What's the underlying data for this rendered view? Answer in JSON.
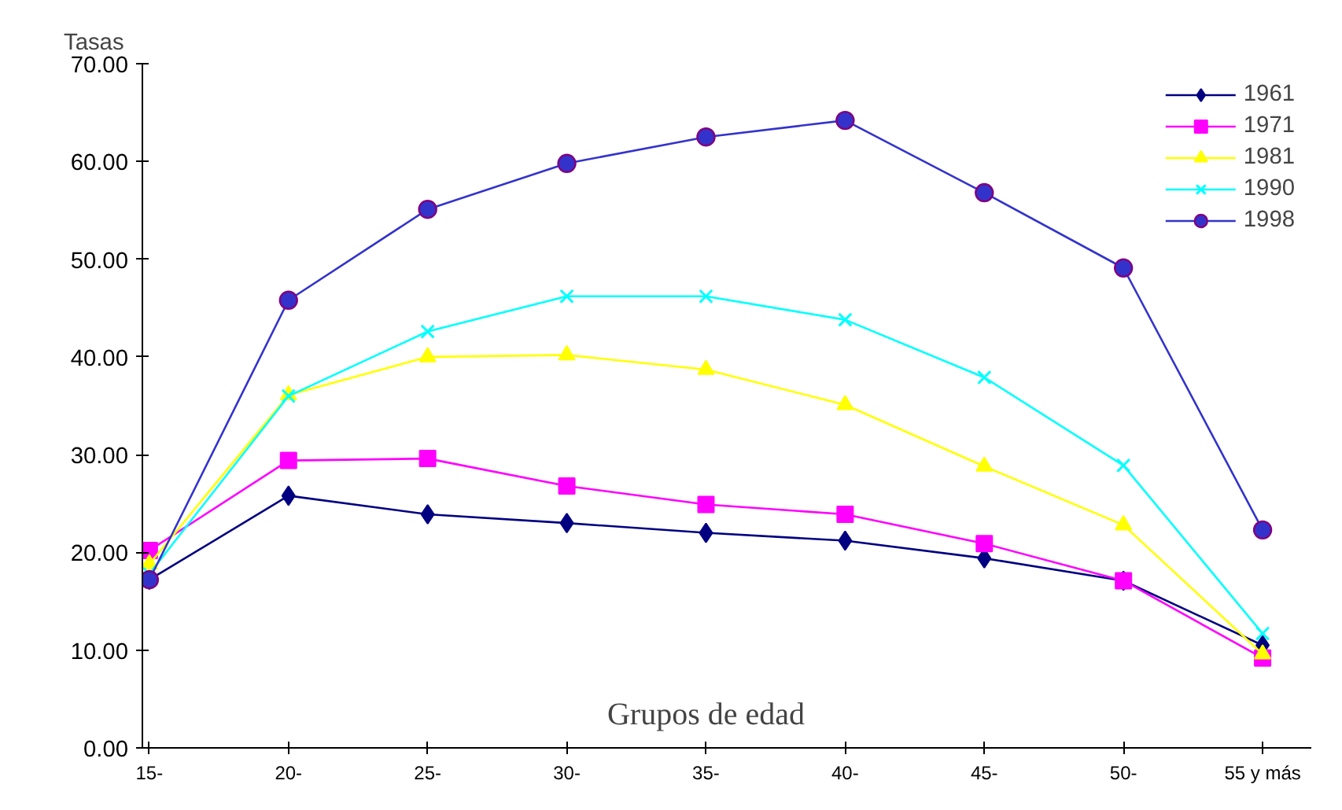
{
  "chart_data": {
    "type": "line",
    "ylabel": "Tasas",
    "xlabel": "Grupos de edad",
    "categories": [
      "15-",
      "20-",
      "25-",
      "30-",
      "35-",
      "40-",
      "45-",
      "50-",
      "55 y más"
    ],
    "series": [
      {
        "name": "1961",
        "color": "#000080",
        "marker": "diamond",
        "values": [
          17.2,
          25.8,
          23.9,
          23.0,
          22.0,
          21.2,
          19.4,
          17.1,
          10.5
        ]
      },
      {
        "name": "1971",
        "color": "#ff00ff",
        "marker": "square",
        "values": [
          20.2,
          29.4,
          29.6,
          26.8,
          24.9,
          23.9,
          20.9,
          17.1,
          9.2
        ]
      },
      {
        "name": "1981",
        "color": "#ffff00",
        "marker": "triangle",
        "values": [
          18.8,
          36.1,
          40.0,
          40.2,
          38.7,
          35.1,
          28.8,
          22.8,
          9.6
        ]
      },
      {
        "name": "1990",
        "color": "#00ffff",
        "marker": "cross",
        "values": [
          17.8,
          36.0,
          42.6,
          46.2,
          46.2,
          43.8,
          37.9,
          28.9,
          11.7
        ]
      },
      {
        "name": "1998",
        "color": "#3333cc",
        "marker": "circle",
        "values": [
          17.2,
          45.8,
          55.1,
          59.8,
          62.5,
          64.2,
          56.8,
          49.1,
          22.3
        ]
      }
    ],
    "ylim": [
      0,
      70
    ],
    "yticks": [
      {
        "value": 0,
        "label": "0.00"
      },
      {
        "value": 10,
        "label": "10.00"
      },
      {
        "value": 20,
        "label": "20.00"
      },
      {
        "value": 30,
        "label": "30.00"
      },
      {
        "value": 40,
        "label": "40.00"
      },
      {
        "value": 50,
        "label": "50.00"
      },
      {
        "value": 60,
        "label": "60.00"
      },
      {
        "value": 70,
        "label": "70.00"
      }
    ],
    "grid": false,
    "legend": "top right",
    "line_style": "solid"
  }
}
